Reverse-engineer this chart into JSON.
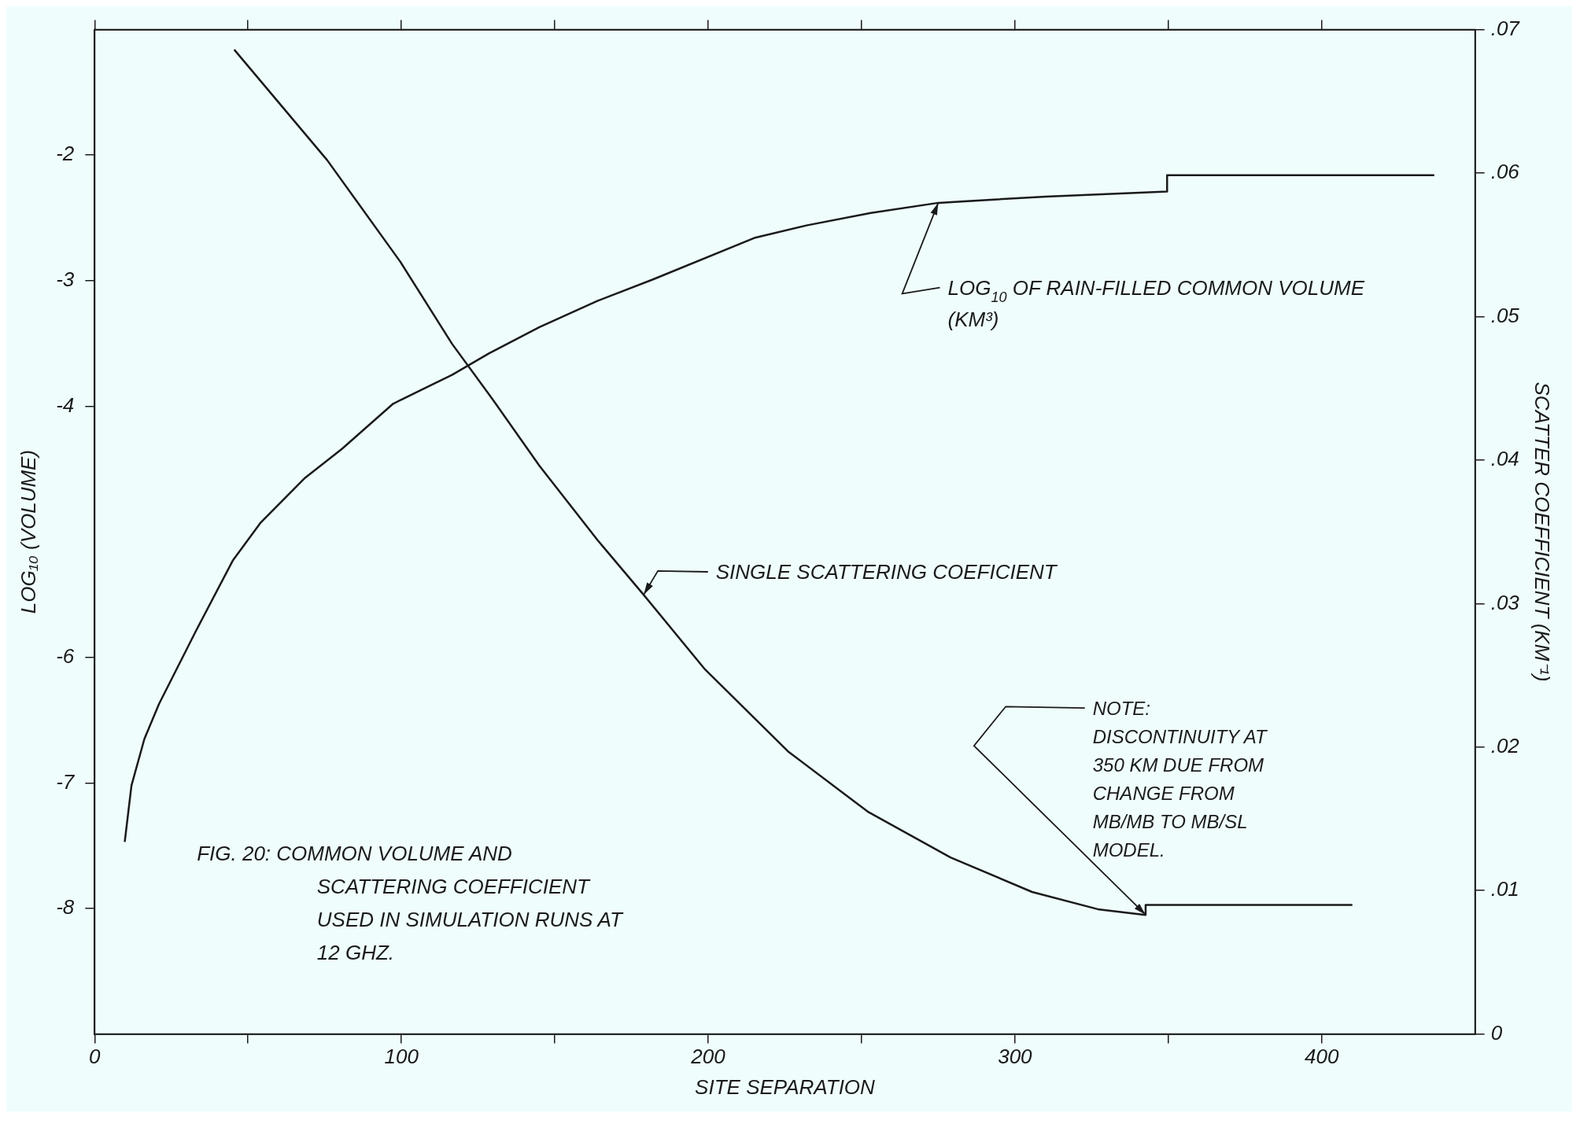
{
  "chart_data": {
    "type": "line",
    "title": "FIG. 20: COMMON VOLUME AND SCATTERING COEFFICIENT USED IN SIMULATION RUNS AT 12 GHZ.",
    "xlabel": "SITE SEPARATION",
    "ylabel": "LOG₁₀ (VOLUME)",
    "y2label": "SCATTER COEFFICIENT (KM⁻¹)",
    "series": [
      {
        "color": "#1a1a1a",
        "x": [
          9.8,
          12,
          16.2,
          21,
          33,
          45,
          54,
          68.6,
          80.6,
          97.3,
          109,
          116.5,
          128.5,
          145,
          164,
          182,
          215,
          232,
          253,
          275,
          310,
          349.6,
          349.6,
          436.7
        ],
        "values": [
          -7.47,
          -7.02,
          -6.65,
          -6.37,
          -5.79,
          -5.23,
          -4.93,
          -4.57,
          -4.34,
          -3.98,
          -3.84,
          -3.75,
          -3.58,
          -3.37,
          -3.16,
          -2.99,
          -2.66,
          -2.56,
          -2.46,
          -2.38,
          -2.33,
          -2.29,
          -2.16,
          -2.16
        ]
      },
      {
        "color": "#1a1a1a",
        "axis": "y2",
        "x": [
          45.5,
          75.8,
          99.7,
          116.5,
          129.5,
          145,
          164,
          179,
          199,
          226,
          252,
          279,
          305.6,
          327,
          342.6,
          342.6,
          410
        ],
        "values": [
          0.0686,
          0.0609,
          0.0538,
          0.0481,
          0.0443,
          0.0396,
          0.0344,
          0.0306,
          0.0254,
          0.0197,
          0.0155,
          0.0123,
          0.0099,
          0.0087,
          0.0083,
          0.009,
          0.009
        ]
      }
    ],
    "annotations": [
      {
        "text": "LOG$_{10}$ OF RAIN-FILLED COMMON VOLUME (KM³)",
        "x": 275,
        "y": -2.38
      },
      {
        "text": "SINGLE SCATTERING COEFICIENT",
        "x": 179,
        "y": -5.5
      },
      {
        "text": "NOTE: DISCONTINUITY AT 350 KM DUE FROM CHANGE FROM MB/MB TO MB/SL MODEL.",
        "x": 342.6,
        "y": -8.05
      }
    ],
    "xlim": [
      0,
      450
    ],
    "xticks": [
      0,
      {
        "value": 50,
        "label": null
      },
      100,
      {
        "value": 150,
        "label": null
      },
      200,
      {
        "value": 250,
        "label": null
      },
      300,
      {
        "value": 350,
        "label": null
      },
      400
    ],
    "ylim": [
      -9,
      -1
    ],
    "yticks": [
      -2,
      -3,
      -4,
      -6,
      -7,
      -8
    ],
    "y2lim": [
      0,
      0.07
    ],
    "y2ticks": [
      0,
      {
        "value": 0.01,
        "label": ".01"
      },
      {
        "value": 0.02,
        "label": ".02"
      },
      {
        "value": 0.03,
        "label": ".03"
      },
      {
        "value": 0.04,
        "label": ".04"
      },
      {
        "value": 0.05,
        "label": ".05"
      },
      {
        "value": 0.06,
        "label": ".06"
      },
      {
        "value": 0.07,
        "label": ".07"
      }
    ],
    "grid": false,
    "legend": false,
    "marker": "none",
    "line_style": "solid"
  }
}
